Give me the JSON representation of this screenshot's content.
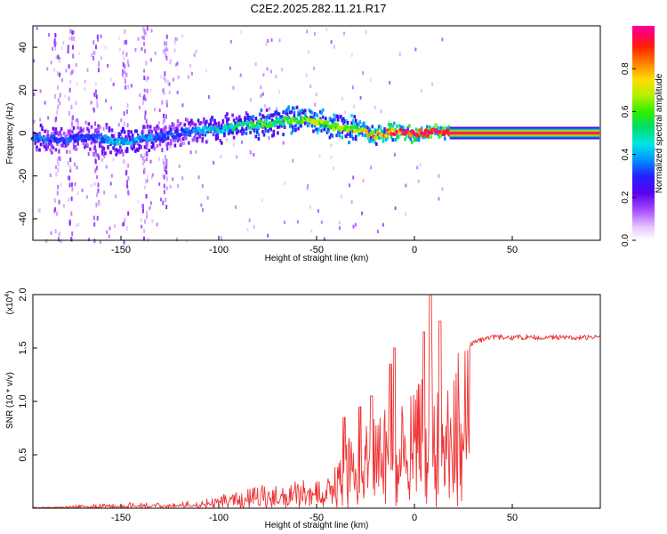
{
  "title": "C2E2.2025.282.11.21.R17",
  "chart_data": [
    {
      "type": "heatmap",
      "name": "spectrogram",
      "xlabel": "Height of straight line (km)",
      "ylabel": "Frequency (Hz)",
      "xlim": [
        -195,
        95
      ],
      "ylim": [
        -50,
        50
      ],
      "xticks": [
        -150,
        -100,
        -50,
        0,
        50
      ],
      "yticks": [
        40,
        20,
        0,
        -20,
        -40
      ],
      "colorbar": {
        "label": "Normalized spectral amplitude",
        "range": [
          0,
          1
        ],
        "ticks": [
          "0.0",
          "0.2",
          "0.4",
          "0.6",
          "0.8"
        ],
        "tick_values": [
          0,
          0.2,
          0.4,
          0.6,
          0.8
        ]
      },
      "ridge": {
        "description": "frequency of peak amplitude vs height",
        "x": [
          -195,
          -180,
          -165,
          -150,
          -140,
          -130,
          -120,
          -110,
          -100,
          -90,
          -80,
          -70,
          -60,
          -50,
          -40,
          -30,
          -25,
          -20,
          -15,
          -10,
          -5,
          0,
          5,
          10,
          15,
          20,
          95
        ],
        "y": [
          -2,
          -3,
          -2,
          -4,
          -3,
          -2,
          0,
          1,
          2,
          3,
          4,
          5,
          6,
          5,
          3,
          2,
          0,
          -1,
          0,
          1,
          0,
          0,
          0,
          0,
          0,
          0,
          0
        ],
        "amplitude": [
          0.35,
          0.32,
          0.3,
          0.42,
          0.38,
          0.35,
          0.3,
          0.4,
          0.45,
          0.5,
          0.55,
          0.55,
          0.6,
          0.65,
          0.6,
          0.65,
          0.7,
          0.75,
          0.8,
          0.85,
          0.9,
          0.95,
          0.95,
          0.98,
          1.0,
          1.0,
          1.0
        ]
      },
      "stable_tone_from_km": 18
    },
    {
      "type": "line",
      "name": "snr",
      "xlabel": "Height of straight line (km)",
      "ylabel": "SNR (10 * v/v)",
      "y_multiplier": "(x10",
      "y_multiplier_exp": "4",
      "color": "#ee3333",
      "xlim": [
        -195,
        95
      ],
      "ylim": [
        0,
        2.0
      ],
      "xticks": [
        -150,
        -100,
        -50,
        0,
        50
      ],
      "yticks": [
        "0.5",
        "1.0",
        "1.5",
        "2.0"
      ],
      "ytick_values": [
        0.5,
        1.0,
        1.5,
        2.0
      ],
      "envelope": {
        "x": [
          -195,
          -180,
          -160,
          -140,
          -120,
          -100,
          -80,
          -60,
          -45,
          -35,
          -30,
          -25,
          -20,
          -15,
          -10,
          -5,
          0,
          5,
          8,
          10,
          15,
          20,
          25,
          30,
          40,
          60,
          95
        ],
        "y": [
          0.01,
          0.02,
          0.04,
          0.06,
          0.05,
          0.12,
          0.2,
          0.25,
          0.32,
          0.6,
          0.7,
          0.8,
          0.85,
          0.95,
          1.1,
          1.0,
          1.1,
          1.3,
          1.5,
          1.2,
          1.25,
          1.35,
          1.45,
          1.55,
          1.6,
          1.6,
          1.6
        ]
      },
      "spikes": [
        {
          "x": -36,
          "y": 0.85
        },
        {
          "x": -28,
          "y": 0.95
        },
        {
          "x": -22,
          "y": 1.05
        },
        {
          "x": -12,
          "y": 1.35
        },
        {
          "x": -10,
          "y": 1.5
        },
        {
          "x": 5,
          "y": 1.65
        },
        {
          "x": 8,
          "y": 2.0
        },
        {
          "x": 13,
          "y": 1.75
        }
      ]
    }
  ]
}
